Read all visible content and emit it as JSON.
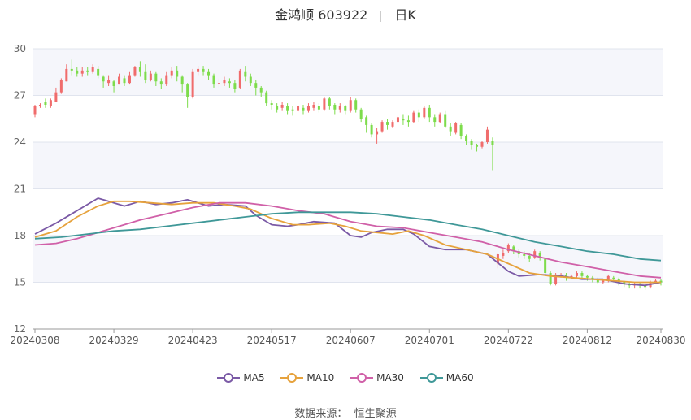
{
  "header": {
    "title": "金鸿顺 603922",
    "period": "日K"
  },
  "source": {
    "label": "数据来源：",
    "value": "恒生聚源"
  },
  "colors": {
    "up": "#f06c6c",
    "down": "#7ddc4b",
    "ma5": "#7b5aa6",
    "ma10": "#e6a23c",
    "ma30": "#d060a8",
    "ma60": "#3f9898",
    "band": "#f5f6fb",
    "grid": "#e0e4ee"
  },
  "chart_data": {
    "type": "candlestick",
    "title": "金鸿顺 603922",
    "y_range": [
      12,
      30
    ],
    "y_ticks": [
      12,
      15,
      18,
      21,
      24,
      27,
      30
    ],
    "x_ticks": [
      {
        "index": 0,
        "label": "20240308"
      },
      {
        "index": 15,
        "label": "20240329"
      },
      {
        "index": 30,
        "label": "20240423"
      },
      {
        "index": 45,
        "label": "20240517"
      },
      {
        "index": 60,
        "label": "20240607"
      },
      {
        "index": 75,
        "label": "20240701"
      },
      {
        "index": 90,
        "label": "20240722"
      },
      {
        "index": 105,
        "label": "20240812"
      },
      {
        "index": 119,
        "label": "20240830"
      }
    ],
    "candles": [
      [
        25.8,
        26.3,
        25.6,
        26.4
      ],
      [
        26.3,
        26.4,
        26.2,
        26.5
      ],
      [
        26.6,
        26.4,
        26.2,
        26.8
      ],
      [
        26.3,
        26.7,
        26.2,
        26.8
      ],
      [
        26.6,
        27.2,
        26.6,
        27.5
      ],
      [
        27.2,
        28.0,
        27.1,
        28.1
      ],
      [
        27.9,
        28.7,
        27.9,
        29.0
      ],
      [
        28.7,
        28.6,
        28.3,
        29.3
      ],
      [
        28.6,
        28.4,
        28.2,
        28.8
      ],
      [
        28.4,
        28.6,
        28.2,
        28.8
      ],
      [
        28.6,
        28.5,
        28.3,
        28.8
      ],
      [
        28.5,
        28.8,
        28.4,
        29.0
      ],
      [
        28.7,
        28.3,
        28.1,
        28.9
      ],
      [
        28.2,
        27.9,
        27.5,
        28.3
      ],
      [
        27.8,
        28.0,
        27.6,
        28.3
      ],
      [
        27.9,
        27.6,
        27.2,
        28.0
      ],
      [
        27.7,
        28.2,
        27.7,
        28.4
      ],
      [
        28.1,
        27.8,
        27.6,
        28.3
      ],
      [
        27.8,
        28.3,
        27.7,
        28.5
      ],
      [
        28.3,
        28.8,
        28.2,
        28.9
      ],
      [
        28.8,
        28.5,
        28.2,
        29.2
      ],
      [
        28.5,
        28.0,
        27.8,
        29.0
      ],
      [
        28.0,
        28.4,
        27.9,
        28.6
      ],
      [
        28.4,
        27.9,
        27.6,
        28.5
      ],
      [
        27.9,
        27.7,
        27.4,
        28.1
      ],
      [
        27.7,
        28.3,
        27.6,
        28.5
      ],
      [
        28.3,
        28.6,
        28.1,
        28.8
      ],
      [
        28.6,
        28.2,
        27.9,
        28.9
      ],
      [
        28.2,
        27.7,
        27.2,
        28.3
      ],
      [
        27.7,
        26.9,
        26.2,
        27.8
      ],
      [
        26.9,
        28.5,
        26.8,
        28.7
      ],
      [
        28.5,
        28.7,
        28.3,
        28.9
      ],
      [
        28.7,
        28.5,
        28.3,
        28.9
      ],
      [
        28.5,
        28.3,
        28.0,
        28.7
      ],
      [
        28.3,
        27.7,
        27.5,
        28.4
      ],
      [
        27.8,
        27.8,
        27.5,
        28.1
      ],
      [
        27.8,
        28.0,
        27.6,
        28.2
      ],
      [
        27.9,
        27.8,
        27.5,
        28.1
      ],
      [
        27.8,
        27.4,
        27.2,
        28.0
      ],
      [
        27.5,
        28.6,
        27.4,
        28.7
      ],
      [
        28.5,
        28.2,
        27.9,
        28.9
      ],
      [
        28.2,
        27.8,
        27.6,
        28.4
      ],
      [
        27.8,
        27.5,
        27.0,
        28.0
      ],
      [
        27.5,
        27.2,
        26.9,
        27.6
      ],
      [
        27.2,
        26.5,
        26.3,
        27.3
      ],
      [
        26.5,
        26.4,
        26.1,
        26.7
      ],
      [
        26.3,
        26.1,
        25.9,
        26.5
      ],
      [
        26.2,
        26.4,
        26.0,
        26.6
      ],
      [
        26.3,
        26.0,
        25.8,
        26.5
      ],
      [
        26.1,
        26.0,
        25.7,
        26.3
      ],
      [
        26.0,
        26.3,
        25.9,
        26.4
      ],
      [
        26.2,
        26.0,
        25.8,
        26.4
      ],
      [
        26.0,
        26.3,
        25.9,
        26.5
      ],
      [
        26.2,
        26.4,
        26.0,
        26.6
      ],
      [
        26.3,
        26.1,
        25.9,
        26.5
      ],
      [
        26.1,
        26.8,
        26.0,
        26.9
      ],
      [
        26.8,
        26.3,
        26.1,
        26.9
      ],
      [
        26.4,
        26.1,
        25.8,
        26.5
      ],
      [
        26.1,
        26.3,
        25.9,
        26.5
      ],
      [
        26.3,
        26.0,
        25.8,
        26.4
      ],
      [
        26.0,
        26.7,
        25.9,
        26.9
      ],
      [
        26.7,
        26.1,
        25.9,
        26.8
      ],
      [
        26.1,
        25.5,
        25.3,
        26.2
      ],
      [
        25.6,
        25.1,
        24.6,
        25.7
      ],
      [
        25.1,
        24.5,
        24.3,
        25.2
      ],
      [
        24.5,
        24.7,
        23.9,
        24.9
      ],
      [
        24.7,
        25.3,
        24.6,
        25.4
      ],
      [
        25.3,
        25.1,
        24.8,
        25.5
      ],
      [
        25.0,
        25.3,
        24.9,
        25.4
      ],
      [
        25.3,
        25.6,
        25.2,
        25.7
      ],
      [
        25.5,
        25.4,
        25.1,
        25.8
      ],
      [
        25.4,
        25.3,
        25.0,
        25.7
      ],
      [
        25.3,
        25.9,
        25.2,
        26.0
      ],
      [
        25.9,
        25.6,
        25.3,
        26.1
      ],
      [
        25.6,
        26.2,
        25.5,
        26.3
      ],
      [
        26.2,
        25.6,
        25.3,
        26.4
      ],
      [
        25.6,
        25.3,
        25.0,
        25.8
      ],
      [
        25.3,
        25.8,
        25.2,
        25.9
      ],
      [
        25.8,
        25.0,
        24.9,
        26.0
      ],
      [
        25.0,
        24.7,
        24.4,
        25.2
      ],
      [
        24.6,
        25.2,
        24.5,
        25.3
      ],
      [
        25.1,
        24.4,
        24.2,
        25.2
      ],
      [
        24.4,
        24.1,
        23.8,
        24.5
      ],
      [
        24.1,
        23.8,
        23.5,
        24.2
      ],
      [
        23.8,
        23.7,
        23.4,
        23.9
      ],
      [
        23.7,
        24.0,
        23.6,
        24.1
      ],
      [
        24.0,
        24.8,
        23.9,
        25.0
      ],
      [
        24.1,
        23.8,
        22.2,
        24.3
      ],
      [
        16.2,
        16.8,
        15.9,
        16.9
      ],
      [
        16.7,
        16.9,
        16.5,
        17.1
      ],
      [
        17.0,
        17.4,
        16.9,
        17.5
      ],
      [
        17.3,
        17.0,
        16.8,
        17.4
      ],
      [
        17.0,
        16.8,
        16.6,
        17.1
      ],
      [
        16.8,
        16.7,
        16.5,
        17.0
      ],
      [
        16.7,
        16.5,
        16.3,
        16.9
      ],
      [
        16.6,
        17.0,
        16.5,
        17.1
      ],
      [
        16.9,
        16.6,
        16.4,
        17.0
      ],
      [
        16.5,
        15.6,
        15.5,
        16.6
      ],
      [
        15.6,
        14.9,
        14.8,
        15.7
      ],
      [
        14.9,
        15.5,
        14.8,
        15.6
      ],
      [
        15.4,
        15.5,
        15.3,
        15.6
      ],
      [
        15.5,
        15.3,
        15.1,
        15.6
      ],
      [
        15.3,
        15.4,
        15.2,
        15.5
      ],
      [
        15.4,
        15.6,
        15.3,
        15.7
      ],
      [
        15.6,
        15.4,
        15.2,
        15.7
      ],
      [
        15.4,
        15.3,
        15.1,
        15.5
      ],
      [
        15.3,
        15.2,
        15.0,
        15.4
      ],
      [
        15.2,
        15.0,
        14.9,
        15.3
      ],
      [
        15.0,
        15.1,
        14.9,
        15.2
      ],
      [
        15.1,
        15.4,
        15.0,
        15.5
      ],
      [
        15.3,
        15.2,
        15.0,
        15.4
      ],
      [
        15.2,
        15.0,
        14.8,
        15.3
      ],
      [
        15.0,
        14.9,
        14.7,
        15.1
      ],
      [
        14.9,
        14.8,
        14.6,
        15.0
      ],
      [
        14.8,
        14.9,
        14.6,
        15.0
      ],
      [
        14.9,
        14.8,
        14.6,
        15.0
      ],
      [
        14.8,
        14.7,
        14.5,
        14.9
      ],
      [
        14.7,
        15.0,
        14.6,
        15.1
      ],
      [
        15.0,
        15.1,
        14.9,
        15.2
      ],
      [
        15.1,
        15.0,
        14.8,
        15.2
      ]
    ],
    "series": [
      {
        "name": "MA5",
        "points": [
          [
            0,
            18.1
          ],
          [
            4,
            18.8
          ],
          [
            8,
            19.6
          ],
          [
            12,
            20.4
          ],
          [
            15,
            20.1
          ],
          [
            17,
            19.9
          ],
          [
            20,
            20.2
          ],
          [
            23,
            20.0
          ],
          [
            26,
            20.1
          ],
          [
            29,
            20.3
          ],
          [
            33,
            19.9
          ],
          [
            36,
            20.0
          ],
          [
            40,
            19.9
          ],
          [
            42,
            19.3
          ],
          [
            45,
            18.7
          ],
          [
            48,
            18.6
          ],
          [
            50,
            18.7
          ],
          [
            53,
            18.9
          ],
          [
            57,
            18.8
          ],
          [
            60,
            18.0
          ],
          [
            62,
            17.9
          ],
          [
            64,
            18.2
          ],
          [
            67,
            18.4
          ],
          [
            70,
            18.4
          ],
          [
            72,
            18.1
          ],
          [
            75,
            17.3
          ],
          [
            78,
            17.1
          ],
          [
            82,
            17.1
          ],
          [
            86,
            16.8
          ],
          [
            90,
            15.7
          ],
          [
            92,
            15.4
          ],
          [
            96,
            15.5
          ],
          [
            100,
            15.4
          ],
          [
            104,
            15.2
          ],
          [
            108,
            15.2
          ],
          [
            112,
            14.9
          ],
          [
            116,
            14.8
          ],
          [
            119,
            15.0
          ]
        ]
      },
      {
        "name": "MA10",
        "points": [
          [
            0,
            17.9
          ],
          [
            4,
            18.3
          ],
          [
            8,
            19.2
          ],
          [
            12,
            19.9
          ],
          [
            15,
            20.2
          ],
          [
            18,
            20.2
          ],
          [
            22,
            20.1
          ],
          [
            26,
            20.0
          ],
          [
            30,
            20.1
          ],
          [
            34,
            20.1
          ],
          [
            38,
            19.9
          ],
          [
            41,
            19.7
          ],
          [
            45,
            19.1
          ],
          [
            49,
            18.7
          ],
          [
            52,
            18.7
          ],
          [
            56,
            18.8
          ],
          [
            59,
            18.6
          ],
          [
            62,
            18.3
          ],
          [
            65,
            18.2
          ],
          [
            68,
            18.1
          ],
          [
            71,
            18.3
          ],
          [
            74,
            18.0
          ],
          [
            78,
            17.4
          ],
          [
            82,
            17.1
          ],
          [
            86,
            16.8
          ],
          [
            90,
            16.2
          ],
          [
            94,
            15.6
          ],
          [
            98,
            15.4
          ],
          [
            102,
            15.3
          ],
          [
            106,
            15.2
          ],
          [
            110,
            15.1
          ],
          [
            114,
            15.0
          ],
          [
            119,
            15.0
          ]
        ]
      },
      {
        "name": "MA30",
        "points": [
          [
            0,
            17.4
          ],
          [
            4,
            17.5
          ],
          [
            8,
            17.8
          ],
          [
            12,
            18.2
          ],
          [
            16,
            18.6
          ],
          [
            20,
            19.0
          ],
          [
            25,
            19.4
          ],
          [
            30,
            19.8
          ],
          [
            35,
            20.1
          ],
          [
            40,
            20.1
          ],
          [
            45,
            19.9
          ],
          [
            50,
            19.6
          ],
          [
            55,
            19.4
          ],
          [
            60,
            18.9
          ],
          [
            65,
            18.6
          ],
          [
            70,
            18.5
          ],
          [
            75,
            18.2
          ],
          [
            80,
            17.9
          ],
          [
            85,
            17.6
          ],
          [
            90,
            17.1
          ],
          [
            95,
            16.7
          ],
          [
            100,
            16.3
          ],
          [
            105,
            16.0
          ],
          [
            110,
            15.7
          ],
          [
            115,
            15.4
          ],
          [
            119,
            15.3
          ]
        ]
      },
      {
        "name": "MA60",
        "points": [
          [
            0,
            17.8
          ],
          [
            5,
            17.9
          ],
          [
            10,
            18.1
          ],
          [
            15,
            18.3
          ],
          [
            20,
            18.4
          ],
          [
            25,
            18.6
          ],
          [
            30,
            18.8
          ],
          [
            35,
            19.0
          ],
          [
            40,
            19.2
          ],
          [
            45,
            19.4
          ],
          [
            50,
            19.5
          ],
          [
            55,
            19.5
          ],
          [
            60,
            19.5
          ],
          [
            65,
            19.4
          ],
          [
            70,
            19.2
          ],
          [
            75,
            19.0
          ],
          [
            80,
            18.7
          ],
          [
            85,
            18.4
          ],
          [
            90,
            18.0
          ],
          [
            95,
            17.6
          ],
          [
            100,
            17.3
          ],
          [
            105,
            17.0
          ],
          [
            110,
            16.8
          ],
          [
            115,
            16.5
          ],
          [
            119,
            16.4
          ]
        ]
      }
    ]
  }
}
